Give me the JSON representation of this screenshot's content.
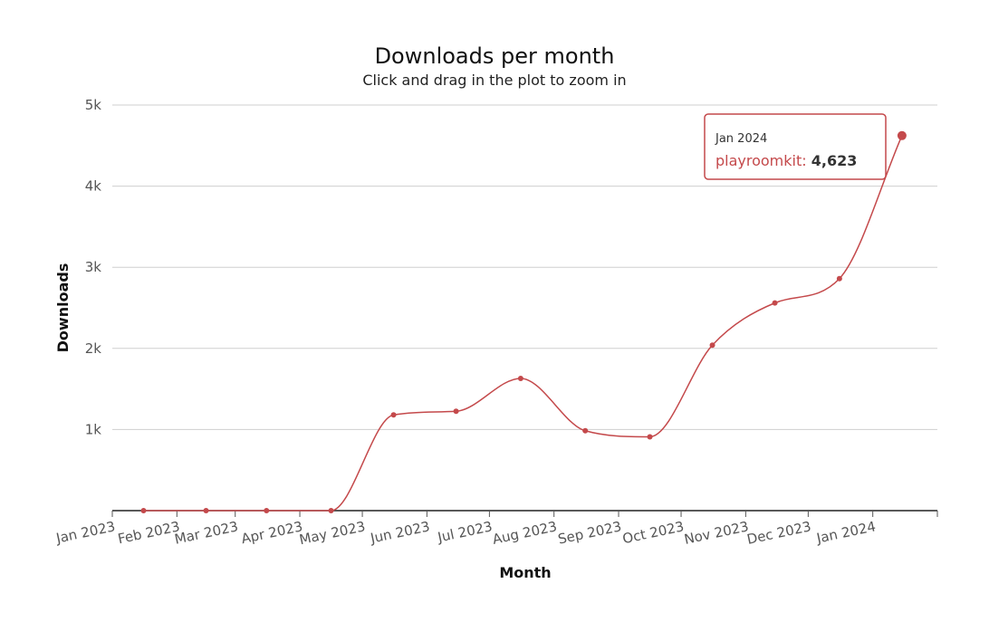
{
  "chart_data": {
    "type": "line",
    "title": "Downloads per month",
    "subtitle": "Click and drag in the plot to zoom in",
    "xlabel": "Month",
    "ylabel": "Downloads",
    "ylim": [
      0,
      5000
    ],
    "yticks": [
      {
        "value": 1000,
        "label": "1k"
      },
      {
        "value": 2000,
        "label": "2k"
      },
      {
        "value": 3000,
        "label": "3k"
      },
      {
        "value": 4000,
        "label": "4k"
      },
      {
        "value": 5000,
        "label": "5k"
      }
    ],
    "xtick_labels": [
      "Jan 2023",
      "Feb 2023",
      "Mar 2023",
      "Apr 2023",
      "May 2023",
      "Jun 2023",
      "Jul 2023",
      "Aug 2023",
      "Sep 2023",
      "Oct 2023",
      "Nov 2023",
      "Dec 2023",
      "Jan 2024"
    ],
    "grid": true,
    "legend": "none",
    "series": [
      {
        "name": "playroomkit",
        "color": "#c4494b",
        "points": [
          {
            "x": "2023-01-16",
            "y": 0
          },
          {
            "x": "2023-02-15",
            "y": 0
          },
          {
            "x": "2023-03-16",
            "y": 0
          },
          {
            "x": "2023-04-16",
            "y": 0
          },
          {
            "x": "2023-05-16",
            "y": 1180
          },
          {
            "x": "2023-06-15",
            "y": 1225
          },
          {
            "x": "2023-07-16",
            "y": 1630
          },
          {
            "x": "2023-08-16",
            "y": 985
          },
          {
            "x": "2023-09-16",
            "y": 910
          },
          {
            "x": "2023-10-16",
            "y": 2040
          },
          {
            "x": "2023-11-15",
            "y": 2560
          },
          {
            "x": "2023-12-16",
            "y": 2860
          },
          {
            "x": "2024-01-15",
            "y": 4623
          }
        ]
      }
    ],
    "tooltip": {
      "date": "Jan 2024",
      "series_name": "playroomkit",
      "value": "4,623"
    }
  }
}
